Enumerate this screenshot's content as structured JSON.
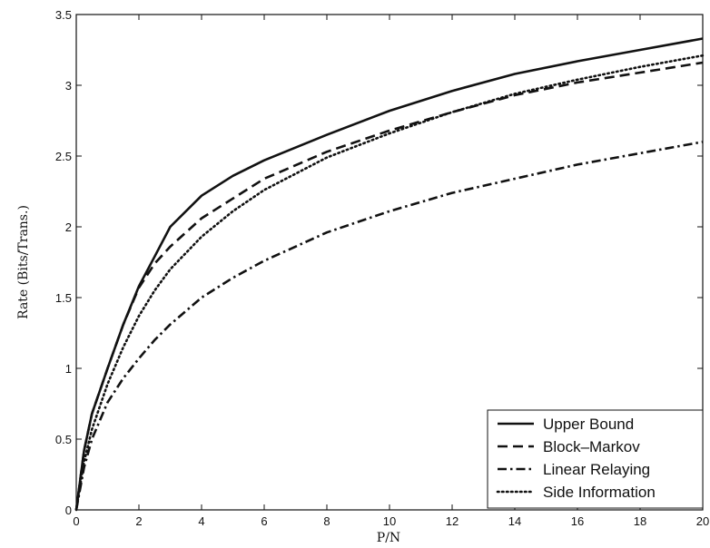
{
  "chart_data": {
    "type": "line",
    "xlabel": "P/N",
    "ylabel": "Rate (Bits/Trans.)",
    "xlim": [
      0,
      20
    ],
    "ylim": [
      0,
      3.5
    ],
    "xticks": [
      "0",
      "2",
      "4",
      "6",
      "8",
      "10",
      "12",
      "14",
      "16",
      "18",
      "20"
    ],
    "yticks": [
      "0",
      "0.5",
      "1",
      "1.5",
      "2",
      "2.5",
      "3",
      "3.5"
    ],
    "grid": false,
    "legend_position": "bottom-right",
    "series": [
      {
        "name": "Upper Bound",
        "style": "solid",
        "x": [
          0,
          0.25,
          0.5,
          1,
          1.5,
          2,
          2.5,
          3,
          4,
          5,
          6,
          8,
          10,
          12,
          14,
          16,
          18,
          20
        ],
        "y": [
          0,
          0.42,
          0.68,
          1.0,
          1.31,
          1.58,
          1.79,
          2.0,
          2.22,
          2.36,
          2.47,
          2.65,
          2.82,
          2.96,
          3.08,
          3.17,
          3.25,
          3.33
        ]
      },
      {
        "name": "Block–Markov",
        "style": "dashed",
        "x": [
          0,
          0.25,
          0.5,
          1,
          1.5,
          2,
          2.5,
          3,
          4,
          5,
          6,
          8,
          10,
          12,
          14,
          16,
          18,
          20
        ],
        "y": [
          0,
          0.42,
          0.68,
          1.0,
          1.31,
          1.57,
          1.74,
          1.86,
          2.06,
          2.2,
          2.34,
          2.53,
          2.68,
          2.81,
          2.93,
          3.02,
          3.09,
          3.16
        ]
      },
      {
        "name": "Linear Relaying",
        "style": "dashdot",
        "x": [
          0,
          0.25,
          0.5,
          1,
          1.5,
          2,
          2.5,
          3,
          4,
          5,
          6,
          8,
          10,
          12,
          14,
          16,
          18,
          20
        ],
        "y": [
          0,
          0.3,
          0.5,
          0.76,
          0.93,
          1.07,
          1.2,
          1.31,
          1.5,
          1.64,
          1.76,
          1.96,
          2.11,
          2.24,
          2.34,
          2.44,
          2.52,
          2.6
        ]
      },
      {
        "name": "Side Information",
        "style": "dotted",
        "x": [
          0,
          0.25,
          0.5,
          1,
          1.5,
          2,
          2.5,
          3,
          4,
          5,
          6,
          8,
          10,
          12,
          14,
          16,
          18,
          20
        ],
        "y": [
          0,
          0.34,
          0.57,
          0.89,
          1.15,
          1.37,
          1.55,
          1.7,
          1.93,
          2.11,
          2.26,
          2.49,
          2.66,
          2.81,
          2.94,
          3.04,
          3.13,
          3.21
        ]
      }
    ]
  }
}
